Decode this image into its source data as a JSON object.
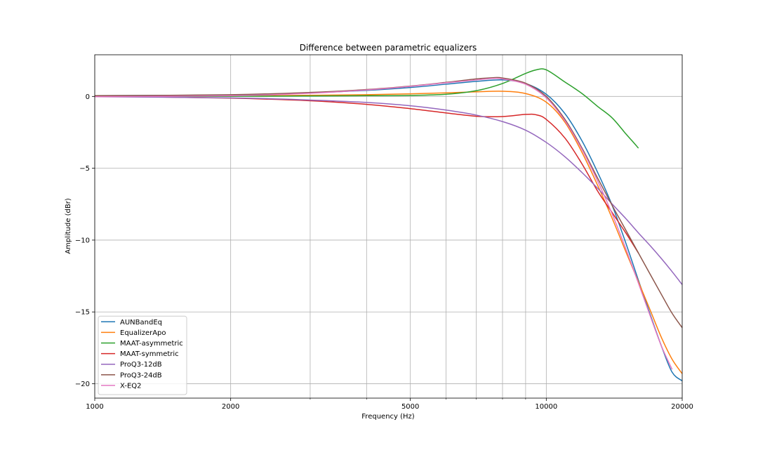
{
  "chart_data": {
    "type": "line",
    "title": "Difference between parametric equalizers",
    "xlabel": "Frequency (Hz)",
    "ylabel": "Amplitude (dBr)",
    "x_scale": "log",
    "xlim": [
      1000,
      20000
    ],
    "ylim": [
      -21,
      2.9
    ],
    "x_ticks": [
      1000,
      2000,
      5000,
      10000,
      20000
    ],
    "x_tick_labels": [
      "1000",
      "2000",
      "5000",
      "10000",
      "20000"
    ],
    "y_ticks": [
      0,
      -5,
      -10,
      -15,
      -20
    ],
    "y_tick_labels": [
      "0",
      "−5",
      "−10",
      "−15",
      "−20"
    ],
    "grid": true,
    "legend_position": "lower-left",
    "series": [
      {
        "name": "AUNBandEq",
        "color": "#1f77b4",
        "points": [
          [
            1000,
            0.05
          ],
          [
            2000,
            0.1
          ],
          [
            3000,
            0.25
          ],
          [
            4000,
            0.42
          ],
          [
            5000,
            0.62
          ],
          [
            6000,
            0.85
          ],
          [
            7000,
            1.05
          ],
          [
            8000,
            1.15
          ],
          [
            9000,
            0.9
          ],
          [
            10000,
            0.15
          ],
          [
            11000,
            -1.2
          ],
          [
            12000,
            -3.1
          ],
          [
            13000,
            -5.3
          ],
          [
            14000,
            -7.6
          ],
          [
            15000,
            -10.2
          ],
          [
            16000,
            -12.8
          ],
          [
            17000,
            -15.2
          ],
          [
            18000,
            -17.4
          ],
          [
            19000,
            -19.2
          ],
          [
            20000,
            -19.8
          ]
        ]
      },
      {
        "name": "EqualizerApo",
        "color": "#ff7f0e",
        "points": [
          [
            1000,
            0.0
          ],
          [
            2000,
            0.02
          ],
          [
            3000,
            0.08
          ],
          [
            4000,
            0.12
          ],
          [
            5000,
            0.18
          ],
          [
            6000,
            0.25
          ],
          [
            7000,
            0.32
          ],
          [
            8000,
            0.36
          ],
          [
            9000,
            0.2
          ],
          [
            10000,
            -0.4
          ],
          [
            11000,
            -1.8
          ],
          [
            12000,
            -3.9
          ],
          [
            13000,
            -6.2
          ],
          [
            14000,
            -8.5
          ],
          [
            15000,
            -10.8
          ],
          [
            16000,
            -12.9
          ],
          [
            17000,
            -14.9
          ],
          [
            18000,
            -16.8
          ],
          [
            19000,
            -18.3
          ],
          [
            20000,
            -19.3
          ]
        ]
      },
      {
        "name": "MAAT-asymmetric",
        "color": "#2ca02c",
        "points": [
          [
            1000,
            0.0
          ],
          [
            2000,
            0.01
          ],
          [
            3000,
            0.03
          ],
          [
            4000,
            0.05
          ],
          [
            5000,
            0.07
          ],
          [
            6000,
            0.15
          ],
          [
            7000,
            0.4
          ],
          [
            8000,
            0.9
          ],
          [
            9000,
            1.6
          ],
          [
            9500,
            1.85
          ],
          [
            10000,
            1.85
          ],
          [
            11000,
            1.0
          ],
          [
            12000,
            0.2
          ],
          [
            13000,
            -0.7
          ],
          [
            14000,
            -1.5
          ],
          [
            15000,
            -2.6
          ],
          [
            15500,
            -3.1
          ],
          [
            16000,
            -3.6
          ]
        ]
      },
      {
        "name": "MAAT-symmetric",
        "color": "#d62728",
        "points": [
          [
            1000,
            0.02
          ],
          [
            2000,
            -0.12
          ],
          [
            3000,
            -0.3
          ],
          [
            4000,
            -0.55
          ],
          [
            5000,
            -0.85
          ],
          [
            6000,
            -1.15
          ],
          [
            7000,
            -1.38
          ],
          [
            8000,
            -1.4
          ],
          [
            9000,
            -1.25
          ],
          [
            9500,
            -1.28
          ],
          [
            10000,
            -1.6
          ],
          [
            11000,
            -2.9
          ],
          [
            12000,
            -4.7
          ],
          [
            13000,
            -6.6
          ],
          [
            14000,
            -8.1
          ],
          [
            15000,
            -9.5
          ],
          [
            16000,
            -10.9
          ]
        ]
      },
      {
        "name": "ProQ3-12dB",
        "color": "#9467bd",
        "points": [
          [
            1000,
            -0.02
          ],
          [
            2000,
            -0.1
          ],
          [
            3000,
            -0.25
          ],
          [
            4000,
            -0.42
          ],
          [
            5000,
            -0.65
          ],
          [
            6000,
            -0.95
          ],
          [
            7000,
            -1.3
          ],
          [
            8000,
            -1.75
          ],
          [
            9000,
            -2.35
          ],
          [
            10000,
            -3.2
          ],
          [
            11000,
            -4.2
          ],
          [
            12000,
            -5.3
          ],
          [
            13000,
            -6.4
          ],
          [
            14000,
            -7.5
          ],
          [
            15000,
            -8.5
          ],
          [
            16000,
            -9.5
          ],
          [
            17000,
            -10.4
          ],
          [
            18000,
            -11.3
          ],
          [
            19000,
            -12.2
          ],
          [
            20000,
            -13.1
          ]
        ]
      },
      {
        "name": "ProQ3-24dB",
        "color": "#8c564b",
        "points": [
          [
            1000,
            0.05
          ],
          [
            2000,
            0.12
          ],
          [
            3000,
            0.28
          ],
          [
            4000,
            0.48
          ],
          [
            5000,
            0.72
          ],
          [
            6000,
            0.98
          ],
          [
            7000,
            1.22
          ],
          [
            7600,
            1.3
          ],
          [
            8000,
            1.28
          ],
          [
            9000,
            0.92
          ],
          [
            10000,
            0.0
          ],
          [
            11000,
            -1.6
          ],
          [
            12000,
            -3.6
          ],
          [
            13000,
            -5.7
          ],
          [
            14000,
            -7.6
          ],
          [
            15000,
            -9.3
          ],
          [
            16000,
            -10.9
          ],
          [
            17000,
            -12.4
          ],
          [
            18000,
            -13.8
          ],
          [
            19000,
            -15.1
          ],
          [
            20000,
            -16.1
          ]
        ]
      },
      {
        "name": "X-EQ2",
        "color": "#e377c2",
        "points": [
          [
            1000,
            -0.02
          ],
          [
            2000,
            0.05
          ],
          [
            3000,
            0.22
          ],
          [
            4000,
            0.45
          ],
          [
            5000,
            0.7
          ],
          [
            6000,
            0.95
          ],
          [
            7000,
            1.15
          ],
          [
            7600,
            1.25
          ],
          [
            8000,
            1.22
          ],
          [
            9000,
            0.85
          ],
          [
            10000,
            -0.1
          ],
          [
            11000,
            -1.7
          ],
          [
            12000,
            -3.7
          ],
          [
            13000,
            -5.9
          ],
          [
            14000,
            -8.2
          ],
          [
            15000,
            -10.6
          ],
          [
            16000,
            -13.0
          ],
          [
            17000,
            -15.3
          ],
          [
            18000,
            -17.4
          ],
          [
            19000,
            -19.0
          ]
        ]
      }
    ]
  }
}
